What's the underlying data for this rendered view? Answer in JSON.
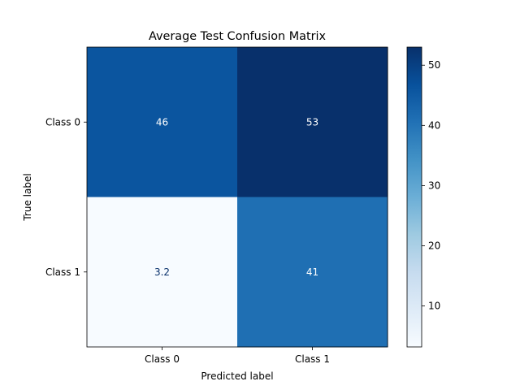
{
  "chart_data": {
    "type": "heatmap",
    "title": "Average Test Confusion Matrix",
    "xlabel": "Predicted label",
    "ylabel": "True label",
    "x_categories": [
      "Class 0",
      "Class 1"
    ],
    "y_categories": [
      "Class 0",
      "Class 1"
    ],
    "values": [
      [
        46,
        53
      ],
      [
        3.2,
        41
      ]
    ],
    "value_labels": [
      [
        "46",
        "53"
      ],
      [
        "3.2",
        "41"
      ]
    ],
    "colormap": "Blues",
    "color_range": [
      3.2,
      53
    ],
    "colorbar_ticks": [
      10,
      20,
      30,
      40,
      50
    ],
    "colorbar_tick_labels": [
      "10",
      "20",
      "30",
      "40",
      "50"
    ]
  }
}
